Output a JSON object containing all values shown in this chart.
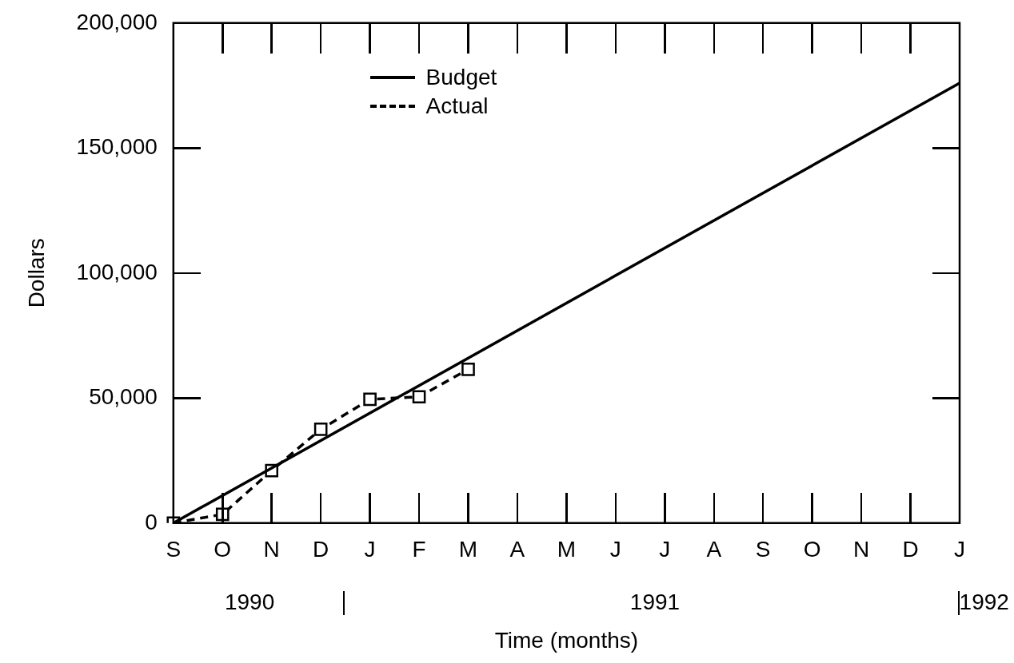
{
  "chart_data": {
    "type": "line",
    "xlabel": "Time (months)",
    "ylabel": "Dollars",
    "categories": [
      "S",
      "O",
      "N",
      "D",
      "J",
      "F",
      "M",
      "A",
      "M",
      "J",
      "J",
      "A",
      "S",
      "O",
      "N",
      "D",
      "J"
    ],
    "series": [
      {
        "name": "Budget",
        "color": "#000000",
        "line_style": "solid",
        "values": [
          0,
          null,
          null,
          null,
          null,
          null,
          null,
          null,
          null,
          null,
          null,
          null,
          null,
          null,
          null,
          null,
          176000
        ]
      },
      {
        "name": "Actual",
        "color": "#000000",
        "line_style": "dashed",
        "marker": "square",
        "values": [
          0,
          3500,
          21000,
          37500,
          49500,
          50500,
          61500,
          null,
          null,
          null,
          null,
          null,
          null,
          null,
          null,
          null,
          null
        ]
      }
    ],
    "ylim": [
      0,
      200000
    ],
    "yticks": [
      {
        "value": 0,
        "label": "0"
      },
      {
        "value": 50000,
        "label": "50,000"
      },
      {
        "value": 100000,
        "label": "100,000"
      },
      {
        "value": 150000,
        "label": "150,000"
      },
      {
        "value": 200000,
        "label": "200,000"
      }
    ],
    "grid": false,
    "legend": "top",
    "annotations": [
      "1990",
      "1991",
      "1992"
    ]
  }
}
